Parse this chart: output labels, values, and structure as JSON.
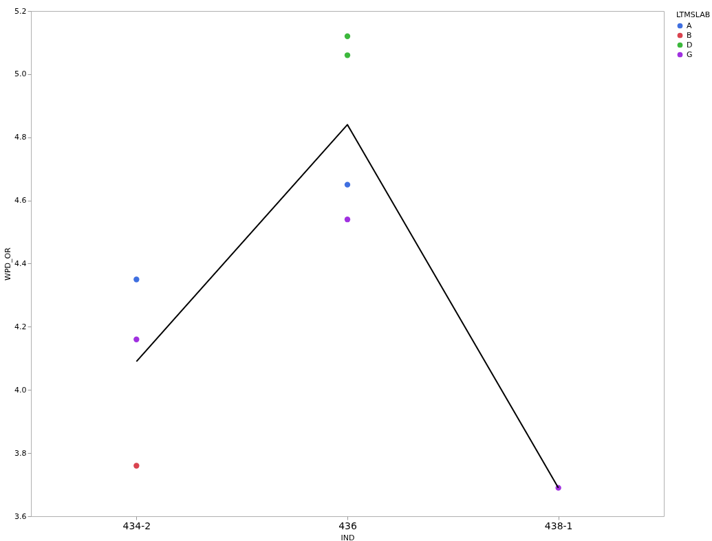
{
  "chart_data": {
    "type": "scatter",
    "xlabel": "IND",
    "ylabel": "WPD_OR",
    "legend_title": "LTMSLAB",
    "categories": [
      "434-2",
      "436",
      "438-1"
    ],
    "series": [
      {
        "name": "A",
        "color": "#3f6fe0",
        "x": [
          "434-2",
          "436"
        ],
        "values": [
          4.35,
          4.65
        ]
      },
      {
        "name": "B",
        "color": "#d9434f",
        "x": [
          "434-2"
        ],
        "values": [
          3.76
        ]
      },
      {
        "name": "D",
        "color": "#3cb83c",
        "x": [
          "436",
          "436"
        ],
        "values": [
          5.12,
          5.06
        ]
      },
      {
        "name": "G",
        "color": "#a030e0",
        "x": [
          "434-2",
          "436",
          "438-1"
        ],
        "values": [
          4.16,
          4.54,
          3.69
        ]
      },
      {
        "type": "line",
        "color": "#000000",
        "marker": "none",
        "values": [
          4.09,
          4.84,
          3.69
        ]
      }
    ],
    "ylim": [
      3.6,
      5.2
    ],
    "yticks": [
      3.6,
      3.8,
      {
        "value": 4,
        "label": "4.0"
      },
      4.2,
      4.4,
      4.6,
      4.8,
      {
        "value": 5,
        "label": "5.0"
      },
      5.2
    ],
    "legend": "top right",
    "marker": "circle"
  }
}
